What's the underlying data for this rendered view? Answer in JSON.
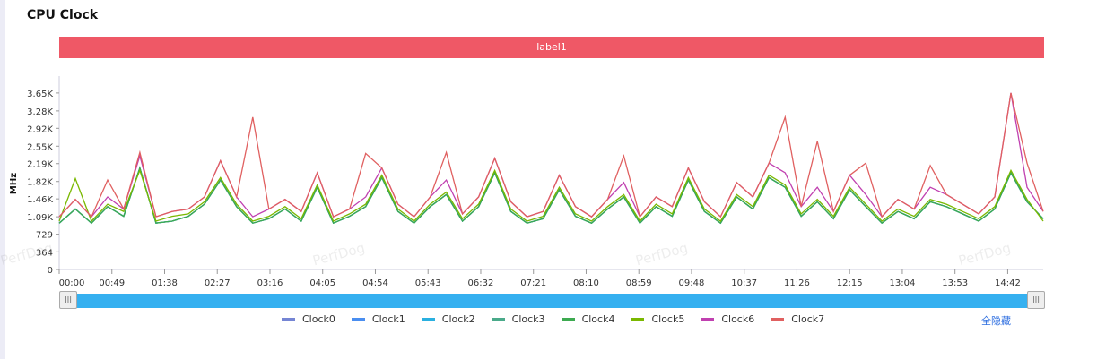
{
  "title": "CPU Clock",
  "label_bar": "label1",
  "hide_all": "全隐藏",
  "watermark": "PerfDog",
  "chart_data": {
    "type": "line",
    "ylabel": "MHz",
    "ylim": [
      0,
      4000
    ],
    "yticks": [
      0,
      364,
      729,
      1090,
      1460,
      1820,
      2190,
      2550,
      2920,
      3280,
      3650
    ],
    "ytick_labels": [
      "0",
      "364",
      "729",
      "1.09K",
      "1.46K",
      "1.82K",
      "2.19K",
      "2.55K",
      "2.92K",
      "3.28K",
      "3.65K"
    ],
    "xlim_seconds": [
      0,
      915
    ],
    "xticks": [
      "00:00",
      "00:49",
      "01:38",
      "02:27",
      "03:16",
      "04:05",
      "04:54",
      "05:43",
      "06:32",
      "07:21",
      "08:10",
      "08:59",
      "09:48",
      "10:37",
      "11:26",
      "12:15",
      "13:04",
      "13:53",
      "14:42"
    ],
    "x": [
      "00:00",
      "00:15",
      "00:30",
      "00:45",
      "01:00",
      "01:15",
      "01:30",
      "01:45",
      "02:00",
      "02:15",
      "02:30",
      "02:45",
      "03:00",
      "03:15",
      "03:30",
      "03:45",
      "04:00",
      "04:15",
      "04:30",
      "04:45",
      "05:00",
      "05:15",
      "05:30",
      "05:45",
      "06:00",
      "06:15",
      "06:30",
      "06:45",
      "07:00",
      "07:15",
      "07:30",
      "07:45",
      "08:00",
      "08:15",
      "08:30",
      "08:45",
      "09:00",
      "09:15",
      "09:30",
      "09:45",
      "10:00",
      "10:15",
      "10:30",
      "10:45",
      "11:00",
      "11:15",
      "11:30",
      "11:45",
      "12:00",
      "12:15",
      "12:30",
      "12:45",
      "13:00",
      "13:15",
      "13:30",
      "13:45",
      "14:00",
      "14:15",
      "14:30",
      "14:45",
      "15:00",
      "15:15"
    ],
    "series": [
      {
        "name": "Clock0",
        "color": "#7585d4",
        "values": [
          960,
          1250,
          960,
          1300,
          1100,
          2100,
          960,
          1000,
          1100,
          1350,
          1850,
          1300,
          960,
          1050,
          1250,
          1000,
          1700,
          960,
          1100,
          1300,
          1900,
          1200,
          960,
          1300,
          1550,
          1000,
          1300,
          2000,
          1200,
          960,
          1050,
          1650,
          1100,
          960,
          1250,
          1500,
          960,
          1300,
          1100,
          1850,
          1200,
          960,
          1500,
          1250,
          1900,
          1700,
          1100,
          1400,
          1050,
          1650,
          1300,
          960,
          1200,
          1050,
          1400,
          1300,
          1150,
          1000,
          1250,
          2000,
          1400,
          1050
        ]
      },
      {
        "name": "Clock1",
        "color": "#4a8ef0",
        "values": [
          960,
          1250,
          960,
          1300,
          1100,
          2100,
          960,
          1000,
          1100,
          1350,
          1850,
          1300,
          960,
          1050,
          1250,
          1000,
          1700,
          960,
          1100,
          1300,
          1900,
          1200,
          960,
          1300,
          1550,
          1000,
          1300,
          2000,
          1200,
          960,
          1050,
          1650,
          1100,
          960,
          1250,
          1500,
          960,
          1300,
          1100,
          1850,
          1200,
          960,
          1500,
          1250,
          1900,
          1700,
          1100,
          1400,
          1050,
          1650,
          1300,
          960,
          1200,
          1050,
          1400,
          1300,
          1150,
          1000,
          1250,
          2000,
          1400,
          1050
        ]
      },
      {
        "name": "Clock2",
        "color": "#2ab0e0",
        "values": [
          960,
          1250,
          960,
          1300,
          1100,
          2100,
          960,
          1000,
          1100,
          1350,
          1850,
          1300,
          960,
          1050,
          1250,
          1000,
          1700,
          960,
          1100,
          1300,
          1900,
          1200,
          960,
          1300,
          1550,
          1000,
          1300,
          2000,
          1200,
          960,
          1050,
          1650,
          1100,
          960,
          1250,
          1500,
          960,
          1300,
          1100,
          1850,
          1200,
          960,
          1500,
          1250,
          1900,
          1700,
          1100,
          1400,
          1050,
          1650,
          1300,
          960,
          1200,
          1050,
          1400,
          1300,
          1150,
          1000,
          1250,
          2000,
          1400,
          1050
        ]
      },
      {
        "name": "Clock3",
        "color": "#4aaa8a",
        "values": [
          960,
          1250,
          960,
          1300,
          1100,
          2100,
          960,
          1000,
          1100,
          1350,
          1850,
          1300,
          960,
          1050,
          1250,
          1000,
          1700,
          960,
          1100,
          1300,
          1900,
          1200,
          960,
          1300,
          1550,
          1000,
          1300,
          2000,
          1200,
          960,
          1050,
          1650,
          1100,
          960,
          1250,
          1500,
          960,
          1300,
          1100,
          1850,
          1200,
          960,
          1500,
          1250,
          1900,
          1700,
          1100,
          1400,
          1050,
          1650,
          1300,
          960,
          1200,
          1050,
          1400,
          1300,
          1150,
          1000,
          1250,
          2000,
          1400,
          1050
        ]
      },
      {
        "name": "Clock4",
        "color": "#3daa50",
        "values": [
          960,
          1250,
          960,
          1300,
          1100,
          2100,
          960,
          1000,
          1100,
          1350,
          1850,
          1300,
          960,
          1050,
          1250,
          1000,
          1700,
          960,
          1100,
          1300,
          1900,
          1200,
          960,
          1300,
          1550,
          1000,
          1300,
          2000,
          1200,
          960,
          1050,
          1650,
          1100,
          960,
          1250,
          1500,
          960,
          1300,
          1100,
          1850,
          1200,
          960,
          1500,
          1250,
          1900,
          1700,
          1100,
          1400,
          1050,
          1650,
          1300,
          960,
          1200,
          1050,
          1400,
          1300,
          1150,
          1000,
          1250,
          2000,
          1400,
          1050
        ]
      },
      {
        "name": "Clock5",
        "color": "#7ab800",
        "values": [
          1000,
          1880,
          1000,
          1350,
          1200,
          2050,
          1000,
          1100,
          1150,
          1400,
          1900,
          1350,
          1000,
          1100,
          1300,
          1050,
          1750,
          1000,
          1150,
          1350,
          1950,
          1250,
          1000,
          1350,
          1600,
          1050,
          1350,
          2050,
          1250,
          1000,
          1100,
          1700,
          1150,
          1000,
          1300,
          1550,
          1000,
          1350,
          1150,
          1900,
          1250,
          1000,
          1550,
          1300,
          1950,
          1750,
          1150,
          1450,
          1100,
          1700,
          1350,
          1000,
          1250,
          1100,
          1450,
          1350,
          1200,
          1050,
          1300,
          2050,
          1450,
          1000
        ]
      },
      {
        "name": "Clock6",
        "color": "#c040b0",
        "values": [
          1090,
          1450,
          1090,
          1500,
          1250,
          2350,
          1090,
          1200,
          1250,
          1500,
          2250,
          1500,
          1090,
          1250,
          1450,
          1200,
          2000,
          1090,
          1250,
          1500,
          2100,
          1350,
          1090,
          1500,
          1850,
          1150,
          1500,
          2300,
          1400,
          1090,
          1200,
          1950,
          1300,
          1090,
          1450,
          1800,
          1090,
          1500,
          1300,
          2100,
          1400,
          1090,
          1800,
          1500,
          2200,
          2000,
          1300,
          1700,
          1200,
          1950,
          1550,
          1090,
          1450,
          1250,
          1700,
          1550,
          1350,
          1150,
          1500,
          3650,
          1700,
          1200
        ]
      },
      {
        "name": "Clock7",
        "color": "#e06060",
        "values": [
          1090,
          1450,
          1090,
          1850,
          1250,
          2420,
          1090,
          1200,
          1250,
          1500,
          2250,
          1500,
          3150,
          1250,
          1450,
          1200,
          2000,
          1090,
          1250,
          2400,
          2100,
          1350,
          1090,
          1500,
          2420,
          1150,
          1500,
          2300,
          1400,
          1090,
          1200,
          1950,
          1300,
          1090,
          1450,
          2350,
          1090,
          1500,
          1300,
          2100,
          1400,
          1090,
          1800,
          1500,
          2200,
          3150,
          1300,
          2650,
          1200,
          1950,
          2200,
          1090,
          1450,
          1250,
          2150,
          1550,
          1350,
          1150,
          1500,
          3650,
          2200,
          1200
        ]
      }
    ]
  }
}
